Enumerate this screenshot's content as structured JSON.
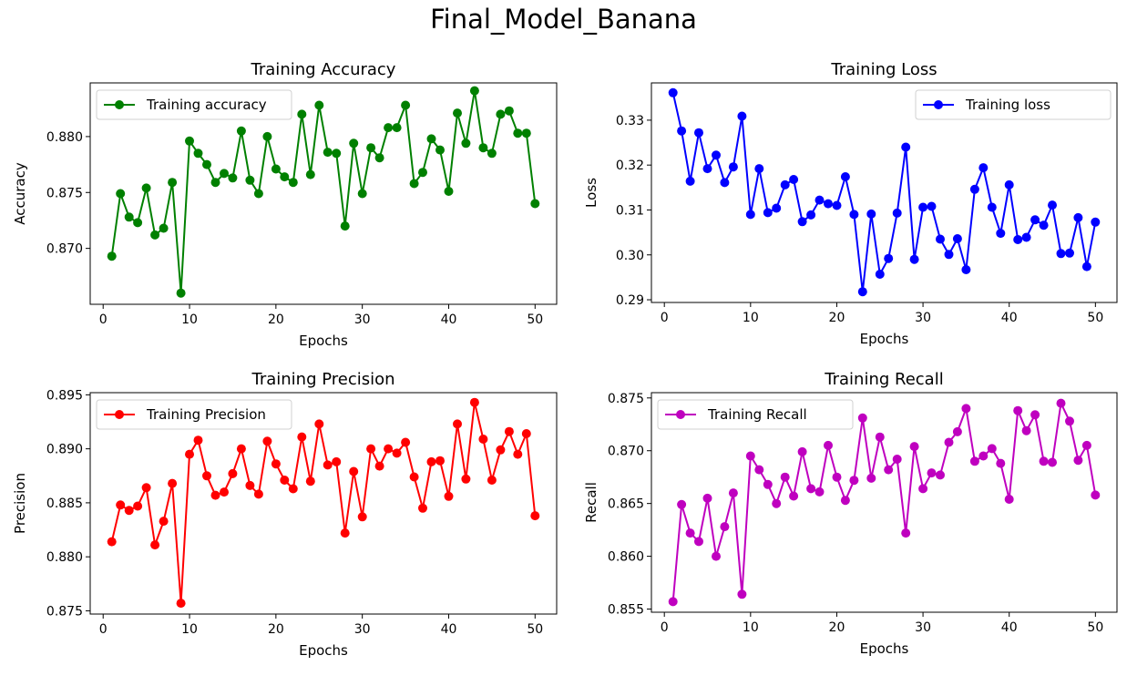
{
  "figure_title": "Final_Model_Banana",
  "chart_data": [
    {
      "type": "line",
      "title": "Training Accuracy",
      "xlabel": "Epochs",
      "ylabel": "Accuracy",
      "color": "#008000",
      "legend_location": "upper-left",
      "xlim": [
        -1.5,
        52.5
      ],
      "ylim": [
        0.865,
        0.8848
      ],
      "xticks": [
        0,
        10,
        20,
        30,
        40,
        50
      ],
      "yticks": [
        0.87,
        0.875,
        0.88
      ],
      "ytick_labels": [
        "0.870",
        "0.875",
        "0.880"
      ],
      "series": [
        {
          "name": "Training accuracy",
          "x": [
            1,
            2,
            3,
            4,
            5,
            6,
            7,
            8,
            9,
            10,
            11,
            12,
            13,
            14,
            15,
            16,
            17,
            18,
            19,
            20,
            21,
            22,
            23,
            24,
            25,
            26,
            27,
            28,
            29,
            30,
            31,
            32,
            33,
            34,
            35,
            36,
            37,
            38,
            39,
            40,
            41,
            42,
            43,
            44,
            45,
            46,
            47,
            48,
            49,
            50
          ],
          "y": [
            0.8693,
            0.8749,
            0.8728,
            0.8723,
            0.8754,
            0.8712,
            0.8718,
            0.8759,
            0.866,
            0.8796,
            0.8785,
            0.8775,
            0.8759,
            0.8767,
            0.8763,
            0.8805,
            0.8761,
            0.8749,
            0.88,
            0.8771,
            0.8764,
            0.8759,
            0.882,
            0.8766,
            0.8828,
            0.8786,
            0.8785,
            0.872,
            0.8794,
            0.8749,
            0.879,
            0.8781,
            0.8808,
            0.8808,
            0.8828,
            0.8758,
            0.8768,
            0.8798,
            0.8788,
            0.8751,
            0.8821,
            0.8794,
            0.8841,
            0.879,
            0.8785,
            0.882,
            0.8823,
            0.8803,
            0.8803,
            0.874
          ]
        }
      ]
    },
    {
      "type": "line",
      "title": "Training Loss",
      "xlabel": "Epochs",
      "ylabel": "Loss",
      "color": "#0000ff",
      "legend_location": "upper-right",
      "xlim": [
        -1.5,
        52.5
      ],
      "ylim": [
        0.2894,
        0.3383
      ],
      "xticks": [
        0,
        10,
        20,
        30,
        40,
        50
      ],
      "yticks": [
        0.29,
        0.3,
        0.31,
        0.32,
        0.33
      ],
      "ytick_labels": [
        "0.29",
        "0.30",
        "0.31",
        "0.32",
        "0.33"
      ],
      "series": [
        {
          "name": "Training loss",
          "x": [
            1,
            2,
            3,
            4,
            5,
            6,
            7,
            8,
            9,
            10,
            11,
            12,
            13,
            14,
            15,
            16,
            17,
            18,
            19,
            20,
            21,
            22,
            23,
            24,
            25,
            26,
            27,
            28,
            29,
            30,
            31,
            32,
            33,
            34,
            35,
            36,
            37,
            38,
            39,
            40,
            41,
            42,
            43,
            44,
            45,
            46,
            47,
            48,
            49,
            50
          ],
          "y": [
            0.3361,
            0.3276,
            0.3164,
            0.3272,
            0.3192,
            0.3222,
            0.3161,
            0.3196,
            0.3309,
            0.309,
            0.3192,
            0.3094,
            0.3104,
            0.3156,
            0.3168,
            0.3074,
            0.3089,
            0.3122,
            0.3114,
            0.311,
            0.3174,
            0.309,
            0.2918,
            0.3091,
            0.2957,
            0.2992,
            0.3093,
            0.324,
            0.299,
            0.3106,
            0.3108,
            0.3035,
            0.3001,
            0.3036,
            0.2967,
            0.3146,
            0.3194,
            0.3106,
            0.3048,
            0.3156,
            0.3034,
            0.3039,
            0.3078,
            0.3066,
            0.3111,
            0.3003,
            0.3004,
            0.3083,
            0.2974,
            0.3073
          ]
        }
      ]
    },
    {
      "type": "line",
      "title": "Training Precision",
      "xlabel": "Epochs",
      "ylabel": "Precision",
      "color": "#ff0000",
      "legend_location": "upper-left",
      "xlim": [
        -1.5,
        52.5
      ],
      "ylim": [
        0.8747,
        0.8952
      ],
      "xticks": [
        0,
        10,
        20,
        30,
        40,
        50
      ],
      "yticks": [
        0.875,
        0.88,
        0.885,
        0.89,
        0.895
      ],
      "ytick_labels": [
        "0.875",
        "0.880",
        "0.885",
        "0.890",
        "0.895"
      ],
      "series": [
        {
          "name": "Training Precision",
          "x": [
            1,
            2,
            3,
            4,
            5,
            6,
            7,
            8,
            9,
            10,
            11,
            12,
            13,
            14,
            15,
            16,
            17,
            18,
            19,
            20,
            21,
            22,
            23,
            24,
            25,
            26,
            27,
            28,
            29,
            30,
            31,
            32,
            33,
            34,
            35,
            36,
            37,
            38,
            39,
            40,
            41,
            42,
            43,
            44,
            45,
            46,
            47,
            48,
            49,
            50
          ],
          "y": [
            0.8814,
            0.8848,
            0.8843,
            0.8847,
            0.8864,
            0.8811,
            0.8833,
            0.8868,
            0.8757,
            0.8895,
            0.8908,
            0.8875,
            0.8857,
            0.886,
            0.8877,
            0.89,
            0.8866,
            0.8858,
            0.8907,
            0.8886,
            0.8871,
            0.8863,
            0.8911,
            0.887,
            0.8923,
            0.8885,
            0.8888,
            0.8822,
            0.8879,
            0.8837,
            0.89,
            0.8884,
            0.89,
            0.8896,
            0.8906,
            0.8874,
            0.8845,
            0.8888,
            0.8889,
            0.8856,
            0.8923,
            0.8872,
            0.8943,
            0.8909,
            0.8871,
            0.8899,
            0.8916,
            0.8895,
            0.8914,
            0.8838
          ]
        }
      ]
    },
    {
      "type": "line",
      "title": "Training Recall",
      "xlabel": "Epochs",
      "ylabel": "Recall",
      "color": "#bf00bf",
      "legend_location": "upper-left",
      "xlim": [
        -1.5,
        52.5
      ],
      "ylim": [
        0.8547,
        0.8755
      ],
      "xticks": [
        0,
        10,
        20,
        30,
        40,
        50
      ],
      "yticks": [
        0.855,
        0.86,
        0.865,
        0.87,
        0.875
      ],
      "ytick_labels": [
        "0.855",
        "0.860",
        "0.865",
        "0.870",
        "0.875"
      ],
      "series": [
        {
          "name": "Training Recall",
          "x": [
            1,
            2,
            3,
            4,
            5,
            6,
            7,
            8,
            9,
            10,
            11,
            12,
            13,
            14,
            15,
            16,
            17,
            18,
            19,
            20,
            21,
            22,
            23,
            24,
            25,
            26,
            27,
            28,
            29,
            30,
            31,
            32,
            33,
            34,
            35,
            36,
            37,
            38,
            39,
            40,
            41,
            42,
            43,
            44,
            45,
            46,
            47,
            48,
            49,
            50
          ],
          "y": [
            0.8557,
            0.8649,
            0.8622,
            0.8614,
            0.8655,
            0.86,
            0.8628,
            0.866,
            0.8564,
            0.8695,
            0.8682,
            0.8668,
            0.865,
            0.8675,
            0.8657,
            0.8699,
            0.8664,
            0.8661,
            0.8705,
            0.8675,
            0.8653,
            0.8672,
            0.8731,
            0.8674,
            0.8713,
            0.8682,
            0.8692,
            0.8622,
            0.8704,
            0.8664,
            0.8679,
            0.8677,
            0.8708,
            0.8718,
            0.874,
            0.869,
            0.8695,
            0.8702,
            0.8688,
            0.8654,
            0.8738,
            0.8719,
            0.8734,
            0.869,
            0.8689,
            0.8745,
            0.8728,
            0.8691,
            0.8705,
            0.8658
          ]
        }
      ]
    }
  ]
}
